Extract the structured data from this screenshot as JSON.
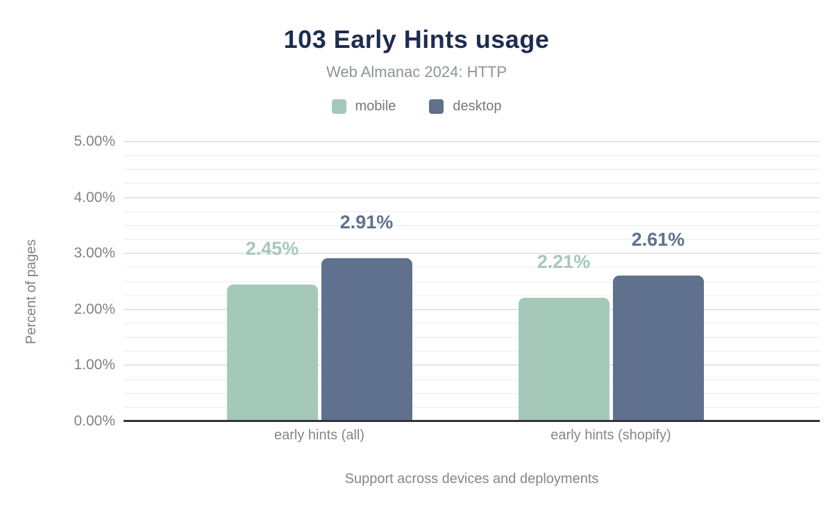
{
  "chart_data": {
    "type": "bar",
    "title": "103 Early Hints usage",
    "subtitle": "Web Almanac 2024: HTTP",
    "categories": [
      "early hints (all)",
      "early hints (shopify)"
    ],
    "series": [
      {
        "name": "mobile",
        "color": "#a5c9b8",
        "values": [
          2.45,
          2.21
        ],
        "labels": [
          "2.45%",
          "2.21%"
        ]
      },
      {
        "name": "desktop",
        "color": "#5f718c",
        "values": [
          2.91,
          2.61
        ],
        "labels": [
          "2.91%",
          "2.61%"
        ]
      }
    ],
    "xlabel": "Support across devices and deployments",
    "ylabel": "Percent of pages",
    "ylim": [
      0,
      5
    ],
    "yticks": [
      "0.00%",
      "1.00%",
      "2.00%",
      "3.00%",
      "4.00%",
      "5.00%"
    ],
    "grid": {
      "major_step": 1,
      "minor_step": 0.25,
      "major_color": "#e5e5e7",
      "minor_color": "#f4f4f6"
    },
    "legend_position": "top",
    "colors": {
      "title": "#1d2d50",
      "text_muted": "#82868c",
      "axis_line": "#35333b"
    }
  }
}
